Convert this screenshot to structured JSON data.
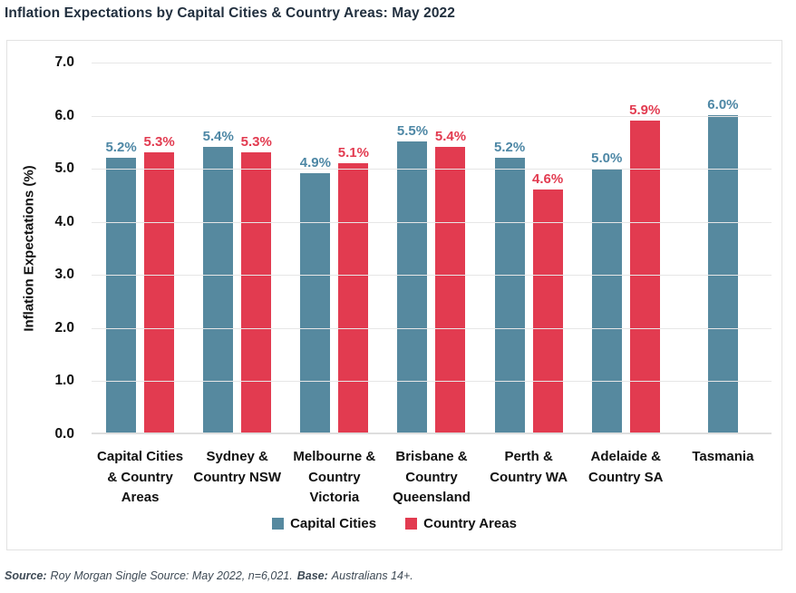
{
  "page_title": "Inflation Expectations by Capital Cities & Country Areas: May 2022",
  "colors": {
    "capital_cities": "#56899f",
    "country_areas": "#e23b50",
    "title_text": "#22303f",
    "grid_line": "#e6e6e6",
    "frame_border": "#e2e2e2",
    "footer_text": "#3e4a55"
  },
  "chart_data": {
    "type": "bar",
    "title": "Inflation Expectations by Capital Cities & Country Areas: May 2022",
    "categories": [
      "Capital Cities & Country Areas",
      "Sydney & Country NSW",
      "Melbourne & Country Victoria",
      "Brisbane & Country Queensland",
      "Perth & Country WA",
      "Adelaide & Country SA",
      "Tasmania"
    ],
    "series": [
      {
        "name": "Capital Cities",
        "color": "#56899f",
        "label_color": "#4d87a5",
        "values": [
          5.2,
          5.4,
          4.9,
          5.5,
          5.2,
          5.0,
          6.0
        ]
      },
      {
        "name": "Country Areas",
        "color": "#e23b50",
        "label_color": "#e23b50",
        "values": [
          5.3,
          5.3,
          5.1,
          5.4,
          4.6,
          5.9,
          null
        ]
      }
    ],
    "ylabel": "Inflation Expectations (%)",
    "xlabel": "",
    "ylim": [
      0,
      7
    ],
    "ytick_step": 1,
    "ytick_format": "one-decimal",
    "value_label_suffix": "%",
    "grid": true,
    "legend_position": "bottom"
  },
  "footer": {
    "source_label": "Source:",
    "source_text": "Roy Morgan Single Source: May 2022, n=6,021.",
    "base_label": "Base:",
    "base_text": "Australians 14+."
  }
}
